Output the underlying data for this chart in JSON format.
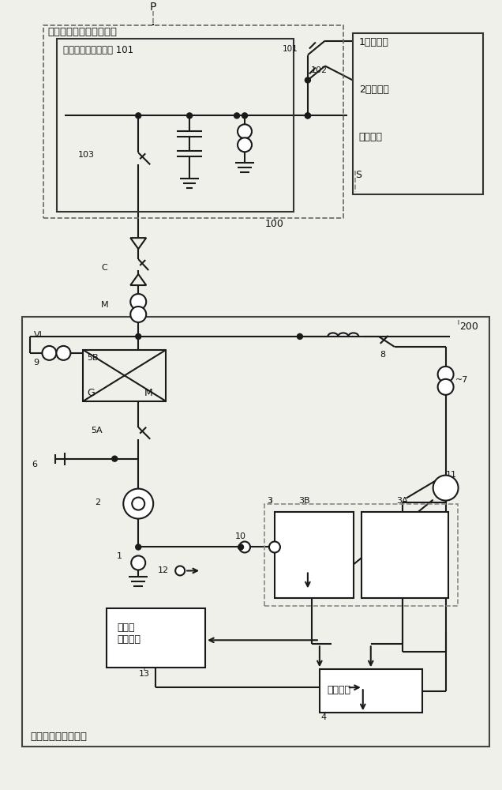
{
  "bg_color": "#f0f0eb",
  "line_color": "#1a1a1a",
  "dashed_color": "#666666",
  "title_bottom": "可变速扬水发电系统",
  "label_p": "P",
  "label_s": "S",
  "label_c": "C",
  "label_m_top": "M",
  "label_200": "200",
  "label_100": "100",
  "box1_title": "发电厂及发电厂开闭设备",
  "box2_title": "发电厂高压开闭设备 101",
  "box_right_title1": "1号输电线",
  "box_right_title2": "2号输电线",
  "box_right_title3": "电力系统",
  "label_103": "103",
  "label_102": "102",
  "label_vl": "VL",
  "label_9": "9",
  "label_5b": "5B",
  "label_g": "G",
  "label_m_motor": "M",
  "label_5a": "5A",
  "label_6": "6",
  "label_8": "8",
  "label_7": "7",
  "label_2": "2",
  "label_1": "1",
  "label_3": "3",
  "label_3b": "3B",
  "label_3a": "3A",
  "label_10": "10",
  "label_11": "11",
  "label_12": "12",
  "label_4": "4",
  "label_13": "13",
  "box_overvoltage": "过电压\n抑制装置",
  "box_control": "控制装置"
}
